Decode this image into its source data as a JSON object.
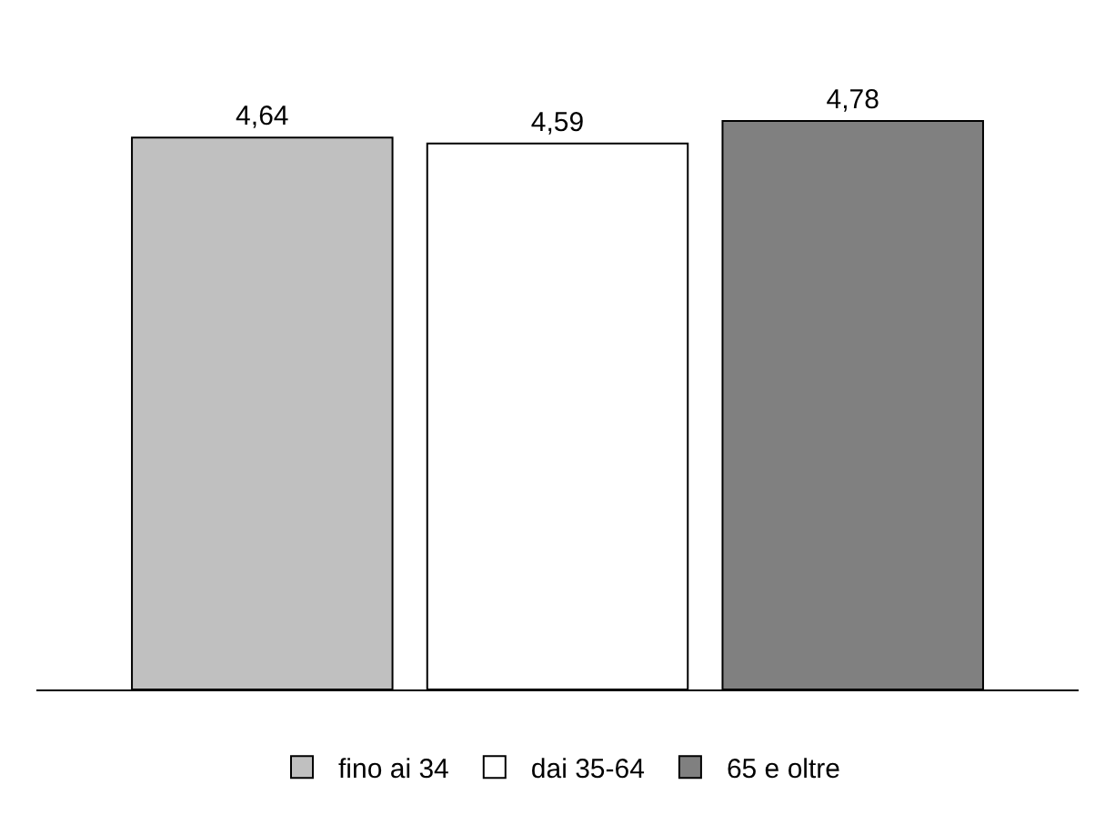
{
  "chart_data": {
    "type": "bar",
    "categories": [
      null
    ],
    "series": [
      {
        "name": "fino ai 34",
        "color": "#c0c0c0",
        "values": [
          4.64
        ],
        "value_labels": [
          "4,64"
        ]
      },
      {
        "name": "dai 35-64",
        "color": "#ffffff",
        "values": [
          4.59
        ],
        "value_labels": [
          "4,59"
        ]
      },
      {
        "name": "65 e oltre",
        "color": "#808080",
        "values": [
          4.78
        ],
        "value_labels": [
          "4,78"
        ]
      }
    ],
    "legend": "bottom"
  }
}
